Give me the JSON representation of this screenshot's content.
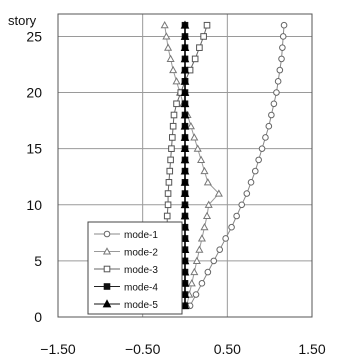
{
  "chart_data": {
    "type": "line",
    "ylabel": "story",
    "xlim": [
      -1.5,
      1.5
    ],
    "ylim": [
      0,
      27
    ],
    "x_ticks": [
      "−1.50",
      "−0.50",
      "0.50",
      "1.50"
    ],
    "x_tick_values": [
      -1.5,
      -0.5,
      0.5,
      1.5
    ],
    "y_ticks": [
      "0",
      "5",
      "10",
      "15",
      "20",
      "25"
    ],
    "y_tick_values": [
      0,
      5,
      10,
      15,
      20,
      25
    ],
    "grid": true,
    "legend_position": "bottom-left",
    "stories": [
      1,
      2,
      3,
      4,
      5,
      6,
      7,
      8,
      9,
      10,
      11,
      12,
      13,
      14,
      15,
      16,
      17,
      18,
      19,
      20,
      21,
      22,
      23,
      24,
      25,
      26
    ],
    "series": [
      {
        "name": "mode-1",
        "marker": "circle",
        "values": [
          0.06,
          0.13,
          0.2,
          0.27,
          0.34,
          0.41,
          0.48,
          0.55,
          0.61,
          0.67,
          0.73,
          0.78,
          0.83,
          0.87,
          0.91,
          0.95,
          0.99,
          1.02,
          1.05,
          1.08,
          1.1,
          1.12,
          1.14,
          1.15,
          1.16,
          1.17
        ]
      },
      {
        "name": "mode-2",
        "marker": "triangle-open",
        "values": [
          0.02,
          0.05,
          0.08,
          0.11,
          0.14,
          0.17,
          0.2,
          0.23,
          0.26,
          0.28,
          0.4,
          0.27,
          0.23,
          0.19,
          0.15,
          0.11,
          0.07,
          0.03,
          -0.02,
          -0.06,
          -0.1,
          -0.14,
          -0.17,
          -0.2,
          -0.22,
          -0.24
        ]
      },
      {
        "name": "mode-3",
        "marker": "square-open",
        "values": [
          -0.04,
          -0.08,
          -0.12,
          -0.15,
          -0.17,
          -0.19,
          -0.2,
          -0.21,
          -0.21,
          -0.2,
          -0.2,
          -0.19,
          -0.18,
          -0.17,
          -0.16,
          -0.15,
          -0.14,
          -0.13,
          -0.1,
          -0.05,
          0.0,
          0.06,
          0.12,
          0.17,
          0.22,
          0.26
        ]
      },
      {
        "name": "mode-4",
        "marker": "square-filled",
        "values": [
          0.0,
          0.0,
          0.0,
          0.0,
          0.0,
          0.0,
          0.0,
          0.0,
          0.0,
          0.0,
          0.0,
          0.0,
          0.0,
          0.0,
          0.0,
          0.0,
          0.0,
          0.0,
          0.0,
          0.0,
          0.0,
          0.0,
          0.0,
          0.0,
          0.0,
          0.0
        ]
      },
      {
        "name": "mode-5",
        "marker": "triangle-filled",
        "values": [
          0.0,
          0.0,
          0.0,
          0.0,
          0.0,
          0.0,
          0.0,
          0.0,
          0.0,
          0.0,
          0.0,
          0.0,
          0.0,
          0.0,
          0.0,
          0.0,
          0.0,
          0.0,
          0.0,
          0.0,
          0.0,
          0.0,
          0.0,
          0.0,
          0.0,
          0.0
        ]
      }
    ]
  }
}
